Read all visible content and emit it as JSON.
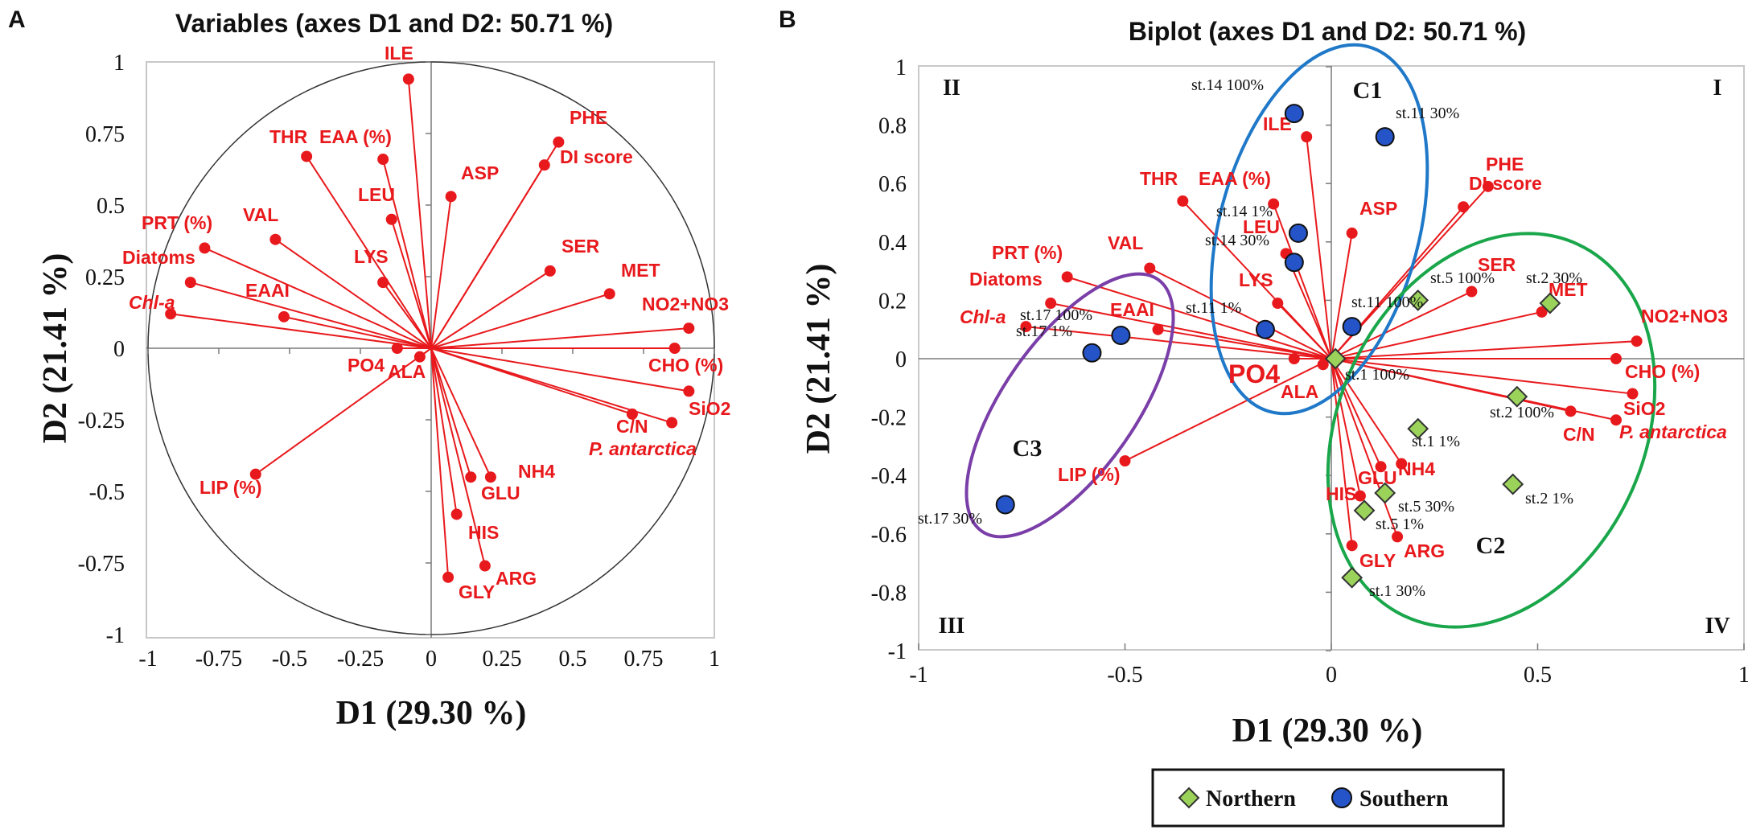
{
  "panel_a_letter": "A",
  "panel_b_letter": "B",
  "chart_data": [
    {
      "type": "scatter",
      "title": "Variables (axes D1 and D2: 50.71 %)",
      "xlabel": "D1 (29.30 %)",
      "ylabel": "D2 (21.41 %)",
      "xlim": [
        -1,
        1
      ],
      "ylim": [
        -1,
        1
      ],
      "xticks": [
        "-1",
        "-0.75",
        "-0.5",
        "-0.25",
        "0",
        "0.25",
        "0.5",
        "0.75",
        "1"
      ],
      "yticks": [
        "1",
        "0.75",
        "0.5",
        "0.25",
        "0",
        "-0.25",
        "-0.5",
        "-0.75",
        "-1"
      ],
      "correlation_circle": true,
      "variables": [
        {
          "name": "ILE",
          "x": -0.08,
          "y": 0.94
        },
        {
          "name": "THR",
          "x": -0.44,
          "y": 0.67
        },
        {
          "name": "EAA (%)",
          "x": -0.17,
          "y": 0.66
        },
        {
          "name": "PHE",
          "x": 0.45,
          "y": 0.72
        },
        {
          "name": "DI score",
          "x": 0.4,
          "y": 0.64
        },
        {
          "name": "ASP",
          "x": 0.07,
          "y": 0.53
        },
        {
          "name": "LEU",
          "x": -0.14,
          "y": 0.45
        },
        {
          "name": "PRT (%)",
          "x": -0.8,
          "y": 0.35
        },
        {
          "name": "VAL",
          "x": -0.55,
          "y": 0.38
        },
        {
          "name": "SER",
          "x": 0.42,
          "y": 0.27
        },
        {
          "name": "LYS",
          "x": -0.17,
          "y": 0.23
        },
        {
          "name": "Diatoms",
          "x": -0.85,
          "y": 0.23
        },
        {
          "name": "MET",
          "x": 0.63,
          "y": 0.19
        },
        {
          "name": "Chl-a",
          "x": -0.92,
          "y": 0.12
        },
        {
          "name": "EAAI",
          "x": -0.52,
          "y": 0.11
        },
        {
          "name": "NO2+NO3",
          "x": 0.91,
          "y": 0.07
        },
        {
          "name": "PO4",
          "x": -0.12,
          "y": 0.0
        },
        {
          "name": "ALA",
          "x": -0.04,
          "y": -0.03
        },
        {
          "name": "CHO (%)",
          "x": 0.86,
          "y": 0.0
        },
        {
          "name": "SiO2",
          "x": 0.91,
          "y": -0.15
        },
        {
          "name": "C/N",
          "x": 0.71,
          "y": -0.23
        },
        {
          "name": "P. antarctica",
          "x": 0.85,
          "y": -0.26
        },
        {
          "name": "LIP (%)",
          "x": -0.62,
          "y": -0.44
        },
        {
          "name": "NH4",
          "x": 0.21,
          "y": -0.45
        },
        {
          "name": "GLU",
          "x": 0.14,
          "y": -0.45
        },
        {
          "name": "HIS",
          "x": 0.09,
          "y": -0.58
        },
        {
          "name": "ARG",
          "x": 0.19,
          "y": -0.76
        },
        {
          "name": "GLY",
          "x": 0.06,
          "y": -0.8
        }
      ]
    },
    {
      "type": "scatter",
      "title": "Biplot (axes D1 and D2: 50.71 %)",
      "xlabel": "D1 (29.30 %)",
      "ylabel": "D2 (21.41 %)",
      "xlim": [
        -1,
        1
      ],
      "ylim": [
        -1,
        1
      ],
      "xticks": [
        "-1",
        "-0.5",
        "0",
        "0.5",
        "1"
      ],
      "yticks": [
        "1",
        "0.8",
        "0.6",
        "0.4",
        "0.2",
        "0",
        "-0.2",
        "-0.4",
        "-0.6",
        "-0.8",
        "-1"
      ],
      "quadrants": [
        "I",
        "II",
        "III",
        "IV"
      ],
      "clusters": [
        "C1",
        "C2",
        "C3"
      ],
      "variables": [
        {
          "name": "ILE",
          "x": -0.06,
          "y": 0.76
        },
        {
          "name": "PHE",
          "x": 0.38,
          "y": 0.59
        },
        {
          "name": "DI score",
          "x": 0.32,
          "y": 0.52
        },
        {
          "name": "THR",
          "x": -0.36,
          "y": 0.54
        },
        {
          "name": "EAA (%)",
          "x": -0.14,
          "y": 0.53
        },
        {
          "name": "ASP",
          "x": 0.05,
          "y": 0.43
        },
        {
          "name": "LEU",
          "x": -0.11,
          "y": 0.36
        },
        {
          "name": "VAL",
          "x": -0.44,
          "y": 0.31
        },
        {
          "name": "PRT (%)",
          "x": -0.64,
          "y": 0.28
        },
        {
          "name": "SER",
          "x": 0.34,
          "y": 0.23
        },
        {
          "name": "LYS",
          "x": -0.13,
          "y": 0.19
        },
        {
          "name": "Diatoms",
          "x": -0.68,
          "y": 0.19
        },
        {
          "name": "MET",
          "x": 0.51,
          "y": 0.16
        },
        {
          "name": "Chl-a",
          "x": -0.74,
          "y": 0.11
        },
        {
          "name": "EAAI",
          "x": -0.42,
          "y": 0.1
        },
        {
          "name": "NO2+NO3",
          "x": 0.74,
          "y": 0.06
        },
        {
          "name": "PO4",
          "x": -0.09,
          "y": 0.0
        },
        {
          "name": "ALA",
          "x": -0.02,
          "y": -0.02
        },
        {
          "name": "CHO (%)",
          "x": 0.69,
          "y": 0.0
        },
        {
          "name": "SiO2",
          "x": 0.73,
          "y": -0.12
        },
        {
          "name": "C/N",
          "x": 0.58,
          "y": -0.18
        },
        {
          "name": "P. antarctica",
          "x": 0.69,
          "y": -0.21
        },
        {
          "name": "LIP (%)",
          "x": -0.5,
          "y": -0.35
        },
        {
          "name": "NH4",
          "x": 0.17,
          "y": -0.36
        },
        {
          "name": "GLU",
          "x": 0.12,
          "y": -0.37
        },
        {
          "name": "HIS",
          "x": 0.07,
          "y": -0.47
        },
        {
          "name": "ARG",
          "x": 0.16,
          "y": -0.61
        },
        {
          "name": "GLY",
          "x": 0.05,
          "y": -0.64
        }
      ],
      "observations": [
        {
          "label": "st.14 100%",
          "group": "Southern",
          "x": -0.09,
          "y": 0.84
        },
        {
          "label": "st.11 30%",
          "group": "Southern",
          "x": 0.13,
          "y": 0.76
        },
        {
          "label": "st.14 1%",
          "group": "Southern",
          "x": -0.08,
          "y": 0.43
        },
        {
          "label": "st.14 30%",
          "group": "Southern",
          "x": -0.09,
          "y": 0.33
        },
        {
          "label": "st.11 100%",
          "group": "Southern",
          "x": 0.05,
          "y": 0.11
        },
        {
          "label": "st.11 1%",
          "group": "Southern",
          "x": -0.16,
          "y": 0.1
        },
        {
          "label": "st.17 100%",
          "group": "Southern",
          "x": -0.51,
          "y": 0.08
        },
        {
          "label": "st.17 1%",
          "group": "Southern",
          "x": -0.58,
          "y": 0.02
        },
        {
          "label": "st.17 30%",
          "group": "Southern",
          "x": -0.79,
          "y": -0.5
        },
        {
          "label": "st.5 100%",
          "group": "Northern",
          "x": 0.21,
          "y": 0.2
        },
        {
          "label": "st.2 30%",
          "group": "Northern",
          "x": 0.53,
          "y": 0.19
        },
        {
          "label": "st.1 100%",
          "group": "Northern",
          "x": 0.01,
          "y": 0.0
        },
        {
          "label": "st.2 100%",
          "group": "Northern",
          "x": 0.45,
          "y": -0.13
        },
        {
          "label": "st.1 1%",
          "group": "Northern",
          "x": 0.21,
          "y": -0.24
        },
        {
          "label": "st.2 1%",
          "group": "Northern",
          "x": 0.44,
          "y": -0.43
        },
        {
          "label": "st.5 30%",
          "group": "Northern",
          "x": 0.13,
          "y": -0.46
        },
        {
          "label": "st.5 1%",
          "group": "Northern",
          "x": 0.08,
          "y": -0.52
        },
        {
          "label": "st.1 30%",
          "group": "Northern",
          "x": 0.05,
          "y": -0.75
        }
      ],
      "legend": [
        {
          "name": "Northern",
          "marker": "diamond",
          "color": "#9bd35a"
        },
        {
          "name": "Southern",
          "marker": "circle",
          "color": "#2454c8"
        }
      ]
    }
  ],
  "colors": {
    "vector": "#e8191c",
    "northern": "#9bd35a",
    "southern": "#2454c8",
    "c1": "#1f78c8",
    "c2": "#1aa64a",
    "c3": "#7a3ea8"
  }
}
